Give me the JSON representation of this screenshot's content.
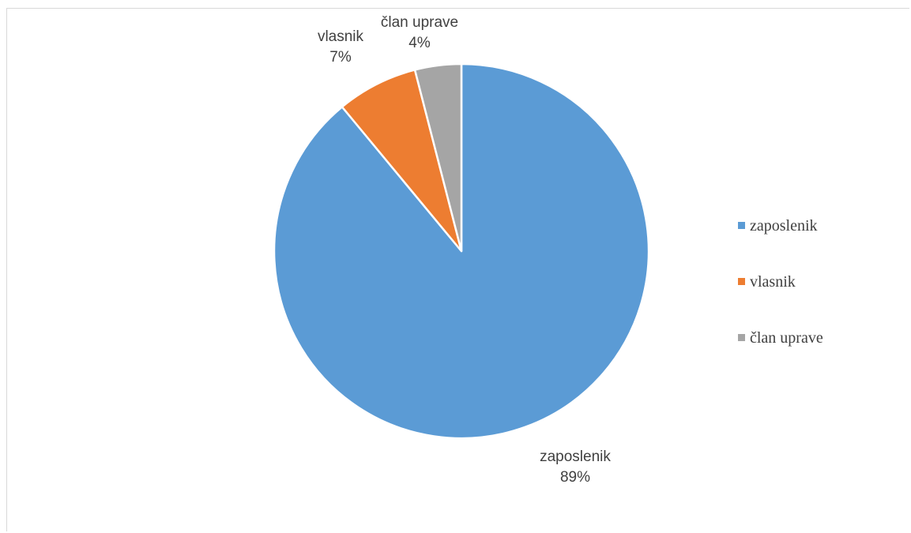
{
  "chart_data": {
    "type": "pie",
    "title": "",
    "categories": [
      "zaposlenik",
      "vlasnik",
      "član uprave"
    ],
    "values": [
      89,
      7,
      4
    ],
    "percent_labels": [
      "89%",
      "7%",
      "4%"
    ],
    "colors": [
      "#5B9BD5",
      "#ED7D31",
      "#A5A5A5"
    ],
    "legend_position": "right",
    "data_labels": "category-and-percent-outside"
  }
}
